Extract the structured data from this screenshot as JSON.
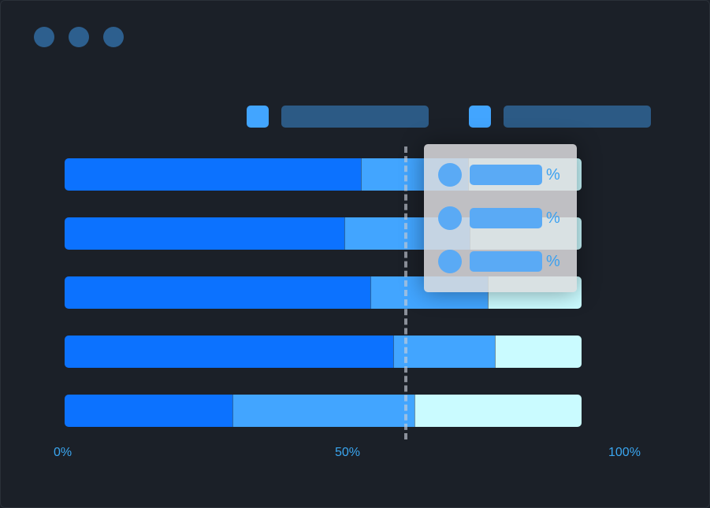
{
  "window": {
    "dots": 3,
    "dot_color": "#2d5f8e"
  },
  "chart_data": {
    "type": "bar",
    "orientation": "horizontal",
    "stacked": true,
    "categories": [
      "",
      "",
      "",
      "",
      ""
    ],
    "series": [
      {
        "color": "#0c72ff",
        "values": [
          57.5,
          54.3,
          59.3,
          63.7,
          32.5
        ]
      },
      {
        "color": "#42a5ff",
        "values": [
          20.6,
          24.1,
          22.6,
          19.7,
          35.2
        ]
      },
      {
        "color": "#cafbff",
        "values": [
          21.9,
          21.6,
          18.1,
          16.6,
          32.3
        ]
      }
    ],
    "xlim": [
      0,
      100
    ],
    "x_ticks": [
      "0%",
      "50%",
      "100%"
    ],
    "reference_line": {
      "value": 66,
      "style": "dashed"
    },
    "legend": {
      "placement": "top-right",
      "swatch_color": "#42a5ff",
      "entries": 2
    },
    "tooltip": {
      "rows": [
        "%",
        "%",
        "%"
      ]
    }
  }
}
